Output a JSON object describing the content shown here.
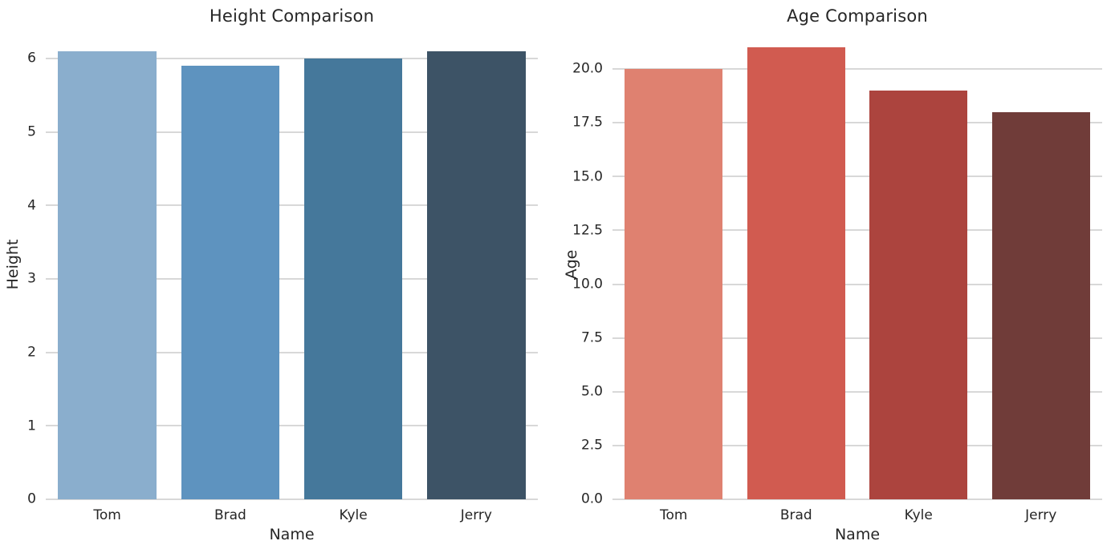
{
  "figure": {
    "background": "#ffffff",
    "text_color": "#262626",
    "grid_color": "#d8d8d8"
  },
  "chart_data": [
    {
      "type": "bar",
      "title": "Height Comparison",
      "xlabel": "Name",
      "ylabel": "Height",
      "categories": [
        "Tom",
        "Brad",
        "Kyle",
        "Jerry"
      ],
      "values": [
        6.1,
        5.9,
        6.0,
        6.1
      ],
      "bar_colors": [
        "#8aaecd",
        "#5e93bf",
        "#45789b",
        "#3d5366"
      ],
      "ylim": [
        0,
        6.405
      ],
      "grid": true,
      "legend_position": "none",
      "yticks": [
        {
          "label": "0",
          "value": 0
        },
        {
          "label": "1",
          "value": 1
        },
        {
          "label": "2",
          "value": 2
        },
        {
          "label": "3",
          "value": 3
        },
        {
          "label": "4",
          "value": 4
        },
        {
          "label": "5",
          "value": 5
        },
        {
          "label": "6",
          "value": 6
        }
      ]
    },
    {
      "type": "bar",
      "title": "Age Comparison",
      "xlabel": "Name",
      "ylabel": "Age",
      "categories": [
        "Tom",
        "Brad",
        "Kyle",
        "Jerry"
      ],
      "values": [
        20,
        21,
        19,
        18
      ],
      "bar_colors": [
        "#df8170",
        "#d15b50",
        "#ac443e",
        "#703c39"
      ],
      "ylim": [
        0,
        22.05
      ],
      "grid": true,
      "legend_position": "none",
      "yticks": [
        {
          "label": "0.0",
          "value": 0
        },
        {
          "label": "2.5",
          "value": 2.5
        },
        {
          "label": "5.0",
          "value": 5
        },
        {
          "label": "7.5",
          "value": 7.5
        },
        {
          "label": "10.0",
          "value": 10
        },
        {
          "label": "12.5",
          "value": 12.5
        },
        {
          "label": "15.0",
          "value": 15
        },
        {
          "label": "17.5",
          "value": 17.5
        },
        {
          "label": "20.0",
          "value": 20
        }
      ]
    }
  ]
}
